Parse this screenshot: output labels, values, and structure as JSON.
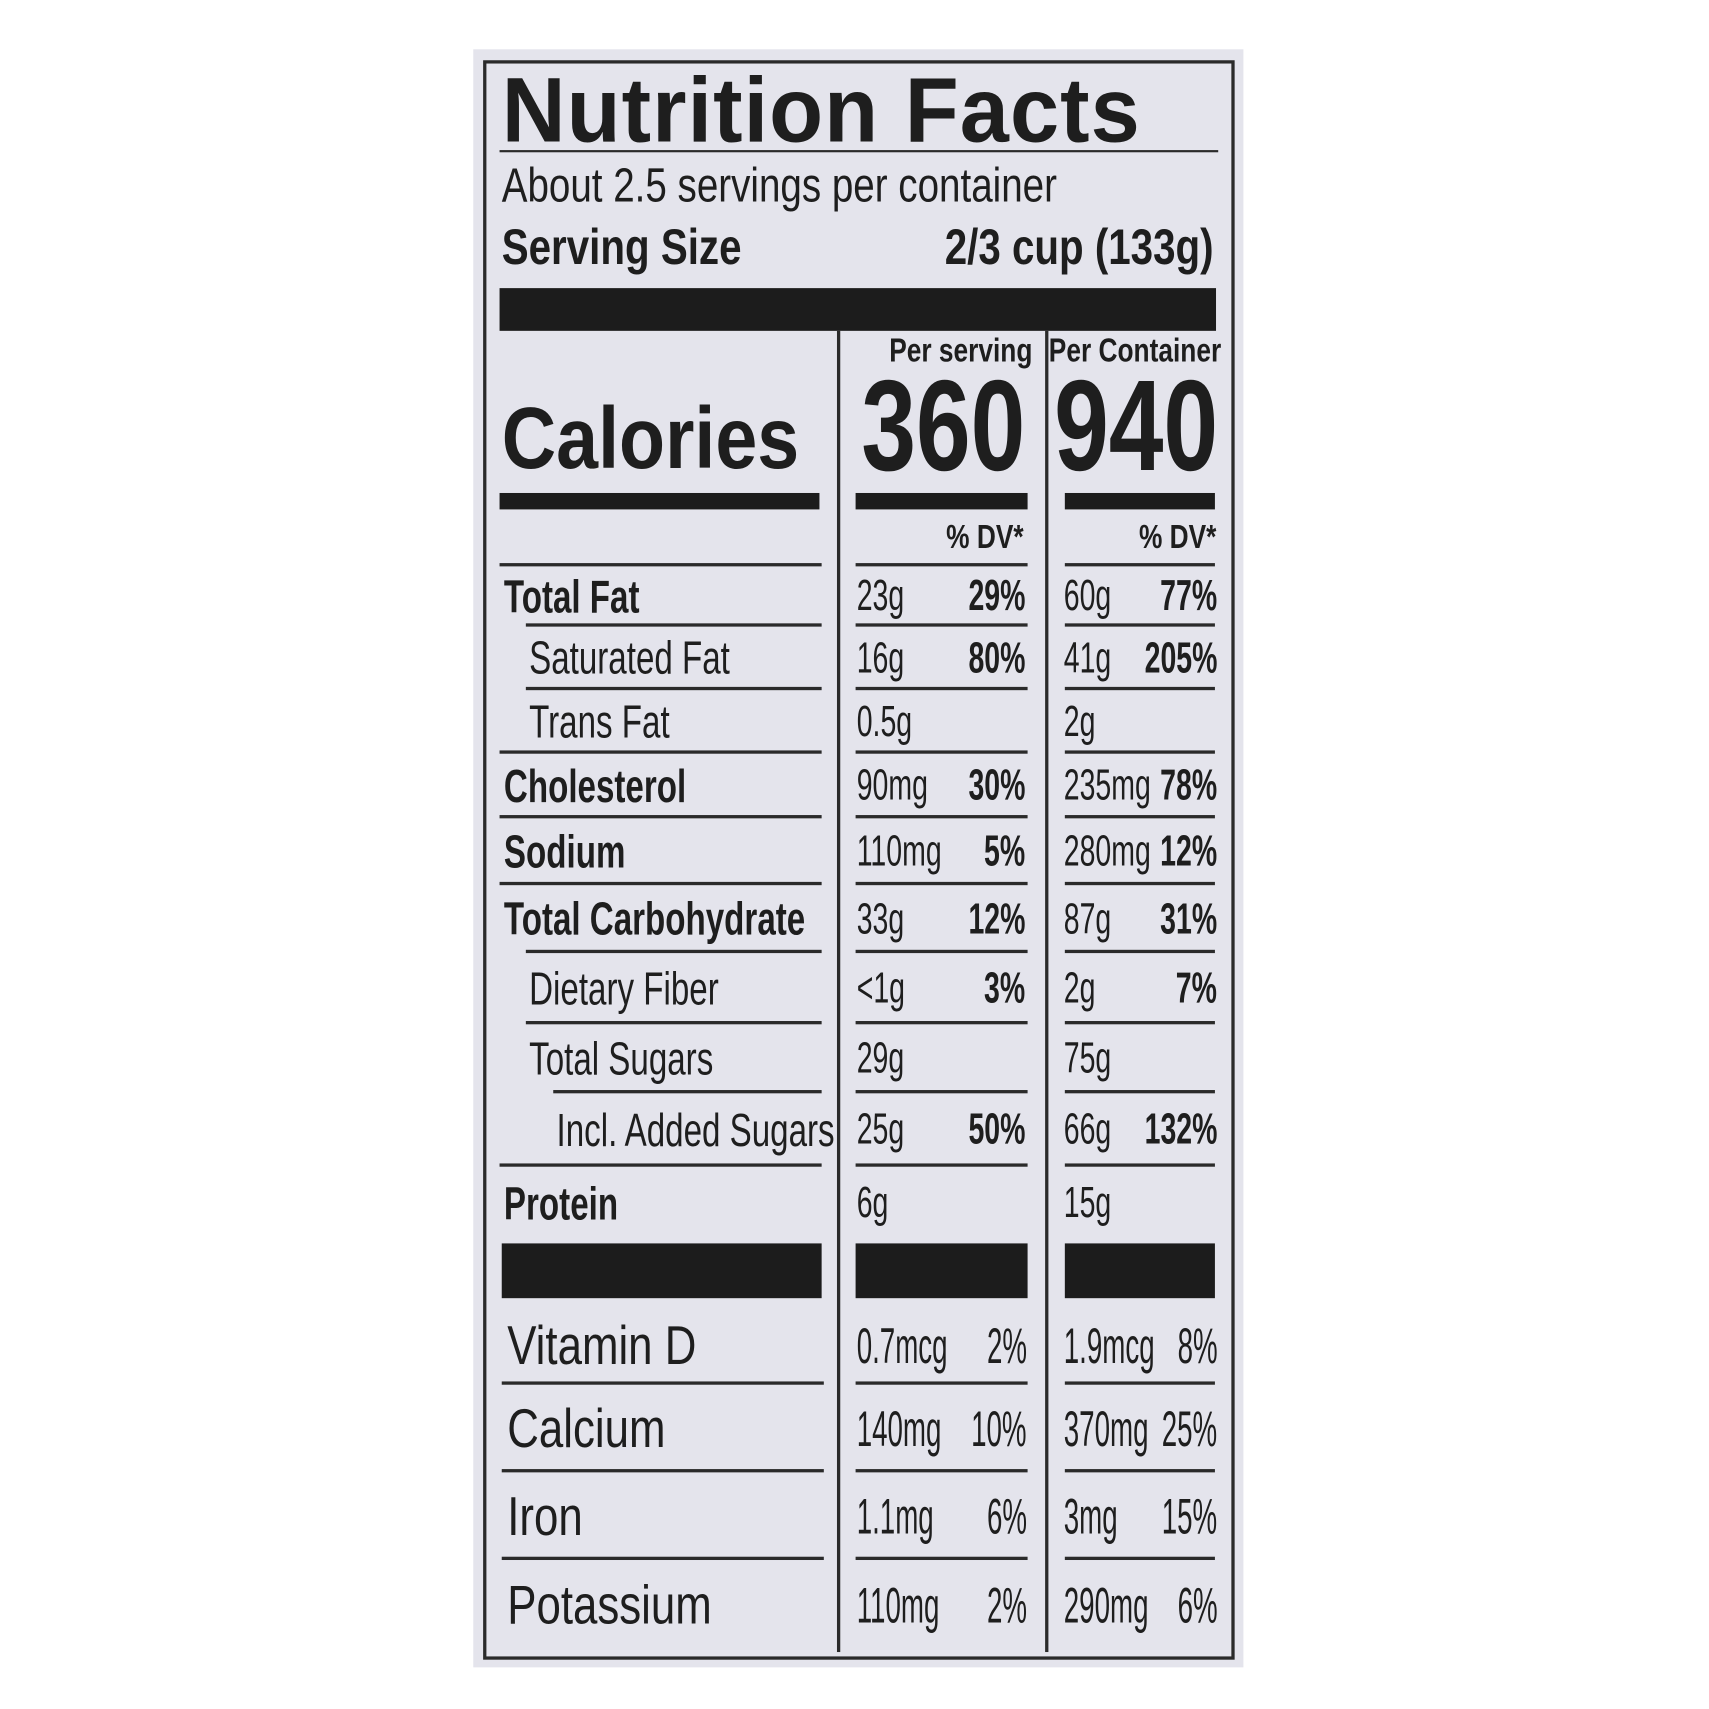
{
  "label": {
    "title": "Nutrition Facts",
    "servings_per_container": "About 2.5 servings per container",
    "serving_size_label": "Serving Size",
    "serving_size_value": "2/3 cup (133g)",
    "per_serving_header": "Per serving",
    "per_container_header": "Per Container",
    "calories_label": "Calories",
    "calories_per_serving": "360",
    "calories_per_container": "940",
    "dv_header": "% DV*",
    "nutrients": [
      {
        "name": "Total Fat",
        "bold": true,
        "indent": 0,
        "ps_amount": "23g",
        "ps_dv": "29%",
        "pc_amount": "60g",
        "pc_dv": "77%"
      },
      {
        "name": "Saturated Fat",
        "bold": false,
        "indent": 1,
        "ps_amount": "16g",
        "ps_dv": "80%",
        "pc_amount": "41g",
        "pc_dv": "205%"
      },
      {
        "name": "Trans Fat",
        "bold": false,
        "indent": 1,
        "ps_amount": "0.5g",
        "ps_dv": "",
        "pc_amount": "2g",
        "pc_dv": ""
      },
      {
        "name": "Cholesterol",
        "bold": true,
        "indent": 0,
        "ps_amount": "90mg",
        "ps_dv": "30%",
        "pc_amount": "235mg",
        "pc_dv": "78%"
      },
      {
        "name": "Sodium",
        "bold": true,
        "indent": 0,
        "ps_amount": "110mg",
        "ps_dv": "5%",
        "pc_amount": "280mg",
        "pc_dv": "12%"
      },
      {
        "name": "Total Carbohydrate",
        "bold": true,
        "indent": 0,
        "ps_amount": "33g",
        "ps_dv": "12%",
        "pc_amount": "87g",
        "pc_dv": "31%"
      },
      {
        "name": "Dietary Fiber",
        "bold": false,
        "indent": 1,
        "ps_amount": "<1g",
        "ps_dv": "3%",
        "pc_amount": "2g",
        "pc_dv": "7%"
      },
      {
        "name": "Total Sugars",
        "bold": false,
        "indent": 1,
        "ps_amount": "29g",
        "ps_dv": "",
        "pc_amount": "75g",
        "pc_dv": ""
      },
      {
        "name": "Incl. Added Sugars",
        "bold": false,
        "indent": 2,
        "ps_amount": "25g",
        "ps_dv": "50%",
        "pc_amount": "66g",
        "pc_dv": "132%"
      },
      {
        "name": "Protein",
        "bold": true,
        "indent": 0,
        "ps_amount": "6g",
        "ps_dv": "",
        "pc_amount": "15g",
        "pc_dv": ""
      }
    ],
    "vitamins": [
      {
        "name": "Vitamin D",
        "ps_amount": "0.7mcg",
        "ps_dv": "2%",
        "pc_amount": "1.9mcg",
        "pc_dv": "8%"
      },
      {
        "name": "Calcium",
        "ps_amount": "140mg",
        "ps_dv": "10%",
        "pc_amount": "370mg",
        "pc_dv": "25%"
      },
      {
        "name": "Iron",
        "ps_amount": "1.1mg",
        "ps_dv": "6%",
        "pc_amount": "3mg",
        "pc_dv": "15%"
      },
      {
        "name": "Potassium",
        "ps_amount": "110mg",
        "ps_dv": "2%",
        "pc_amount": "290mg",
        "pc_dv": "6%"
      }
    ]
  }
}
